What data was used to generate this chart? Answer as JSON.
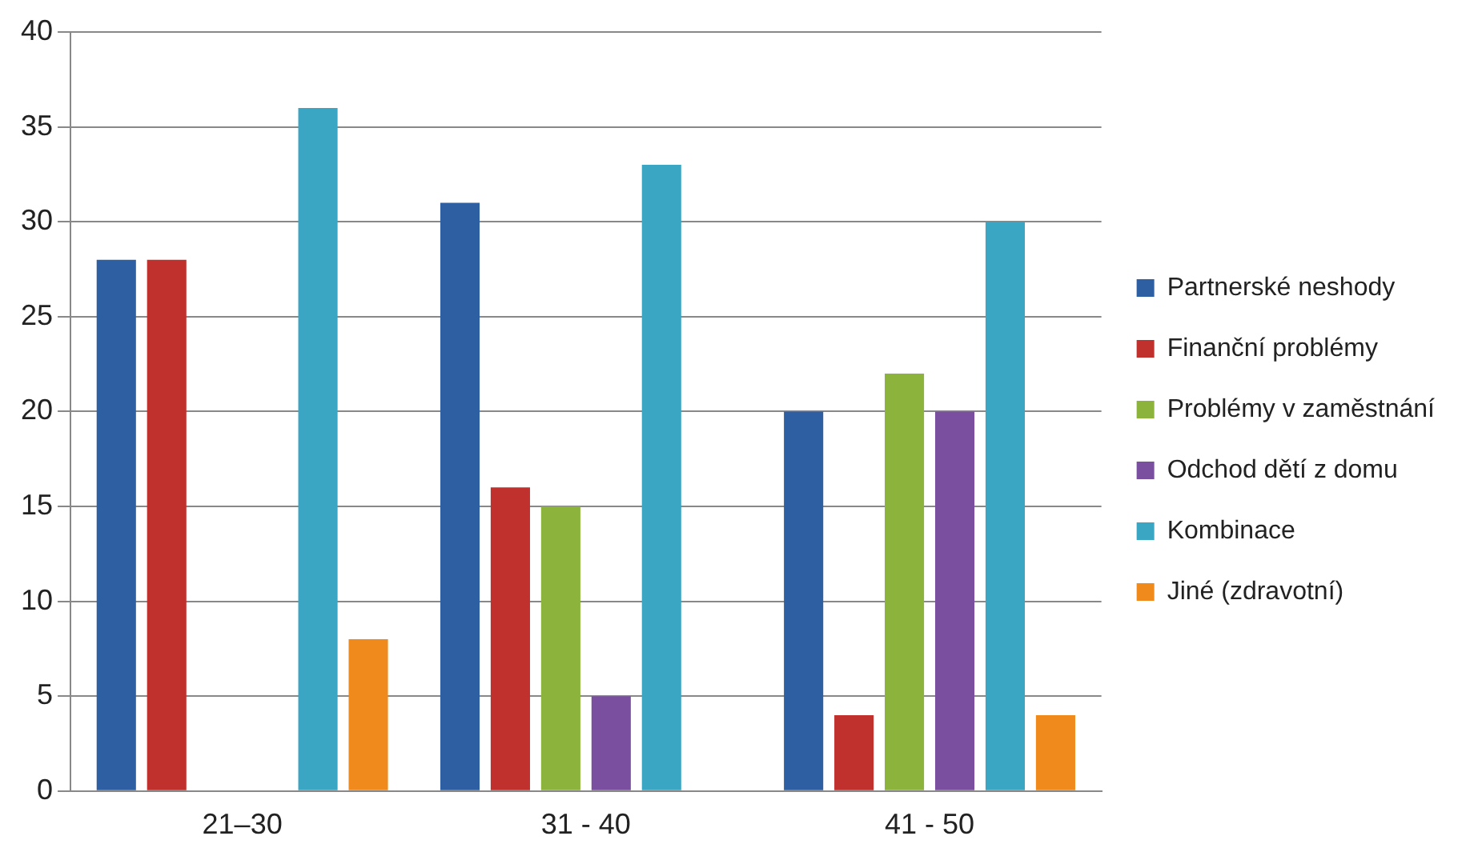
{
  "chart_data": {
    "type": "bar",
    "categories": [
      "21–30",
      "31 - 40",
      "41 - 50"
    ],
    "series": [
      {
        "name": "Partnerské neshody",
        "color": "#2e5fa3",
        "values": [
          28,
          31,
          20
        ]
      },
      {
        "name": "Finanční problémy",
        "color": "#c0302c",
        "values": [
          28,
          16,
          4
        ]
      },
      {
        "name": "Problémy v zaměstnání",
        "color": "#8cb43c",
        "values": [
          null,
          15,
          22
        ]
      },
      {
        "name": "Odchod dětí z domu",
        "color": "#7a4fa0",
        "values": [
          null,
          5,
          20
        ]
      },
      {
        "name": "Kombinace",
        "color": "#3aa6c4",
        "values": [
          36,
          33,
          30
        ]
      },
      {
        "name": "Jiné (zdravotní)",
        "color": "#f08a1c",
        "values": [
          8,
          null,
          4
        ]
      }
    ],
    "ylim": [
      0,
      40
    ],
    "yticks": [
      0,
      5,
      10,
      15,
      20,
      25,
      30,
      35,
      40
    ],
    "grid": "y",
    "legend": "right"
  }
}
